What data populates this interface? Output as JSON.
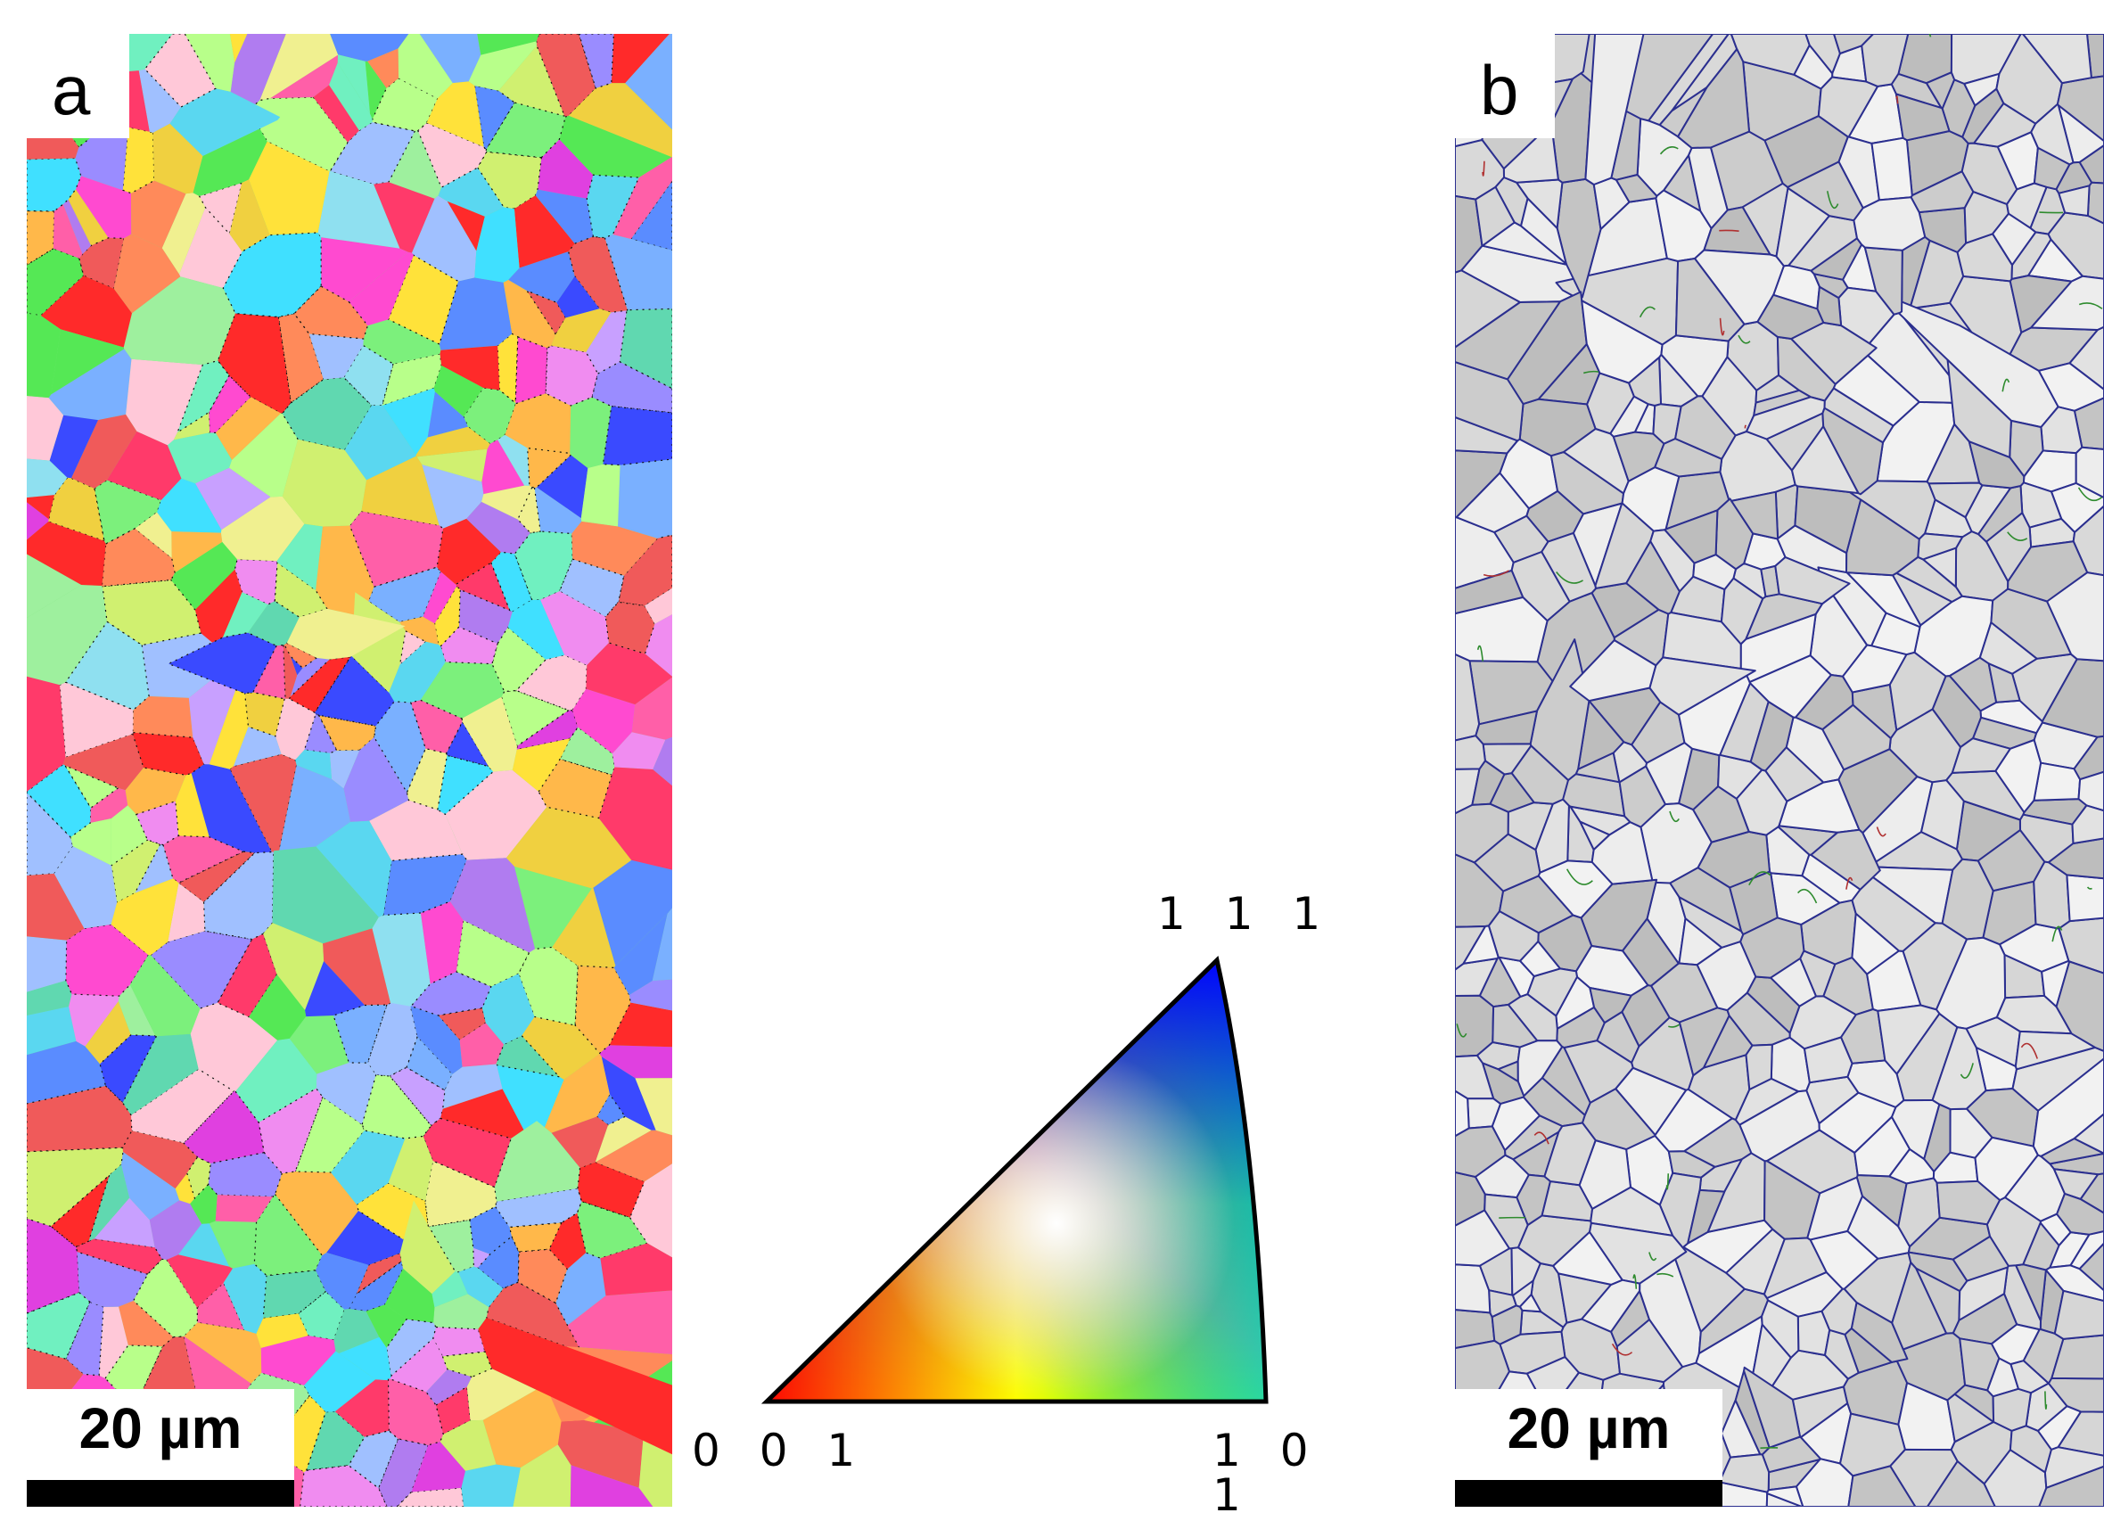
{
  "figure": {
    "panel_a": {
      "letter": "a",
      "scalebar_label": "20 µm",
      "description": "EBSD inverse pole figure orientation map"
    },
    "panel_b": {
      "letter": "b",
      "scalebar_label": "20 µm",
      "description": "grain boundary map on band-contrast image"
    },
    "ipf_key": {
      "corner_111": "1 1 1",
      "corner_001": "0 0 1",
      "corner_101": "1 0 1"
    }
  },
  "colors": {
    "color_001": "#ff0000",
    "color_101": "#00ff00",
    "color_111": "#0000ff",
    "boundary_hagb": "#2b2f8f",
    "boundary_lagb": "#2e8b2e",
    "boundary_twin": "#b03030"
  }
}
